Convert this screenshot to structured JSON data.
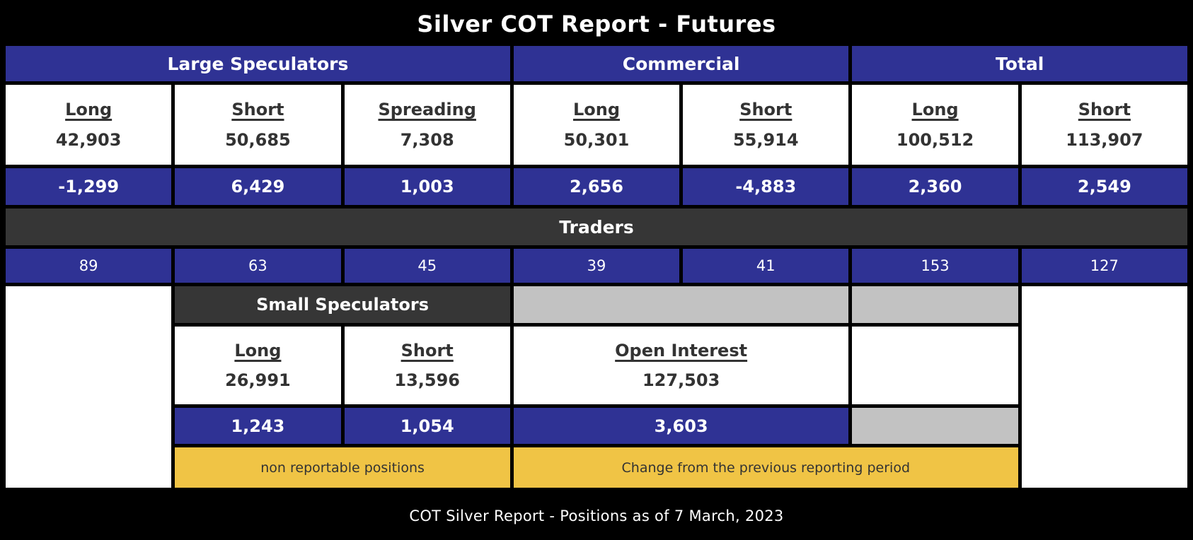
{
  "title": "Silver COT Report - Futures",
  "footer": "COT Silver Report - Positions as of 7 March, 2023",
  "groups": {
    "large_speculators": "Large Speculators",
    "commercial": "Commercial",
    "total": "Total"
  },
  "traders_label": "Traders",
  "top_table": {
    "columns": [
      {
        "header": "Long",
        "value": "42,903",
        "change": "-1,299",
        "traders": "89"
      },
      {
        "header": "Short",
        "value": "50,685",
        "change": "6,429",
        "traders": "63"
      },
      {
        "header": "Spreading",
        "value": "7,308",
        "change": "1,003",
        "traders": "45"
      },
      {
        "header": "Long",
        "value": "50,301",
        "change": "2,656",
        "traders": "39"
      },
      {
        "header": "Short",
        "value": "55,914",
        "change": "-4,883",
        "traders": "41"
      },
      {
        "header": "Long",
        "value": "100,512",
        "change": "2,360",
        "traders": "153"
      },
      {
        "header": "Short",
        "value": "113,907",
        "change": "2,549",
        "traders": "127"
      }
    ]
  },
  "small_speculators": {
    "label": "Small Speculators",
    "long": {
      "header": "Long",
      "value": "26,991",
      "change": "1,243"
    },
    "short": {
      "header": "Short",
      "value": "13,596",
      "change": "1,054"
    },
    "open_interest": {
      "header": "Open Interest",
      "value": "127,503",
      "change": "3,603"
    }
  },
  "legend": {
    "non_reportable": "non reportable positions",
    "change_note": "Change from the previous reporting period"
  },
  "colors": {
    "header_blue": "#2F3294",
    "dark_row": "#363636",
    "legend_yellow": "#F0C445",
    "filler_gray": "#C2C2C2",
    "background_black": "#000000",
    "text_dark": "#333333",
    "text_white": "#FFFFFF"
  }
}
